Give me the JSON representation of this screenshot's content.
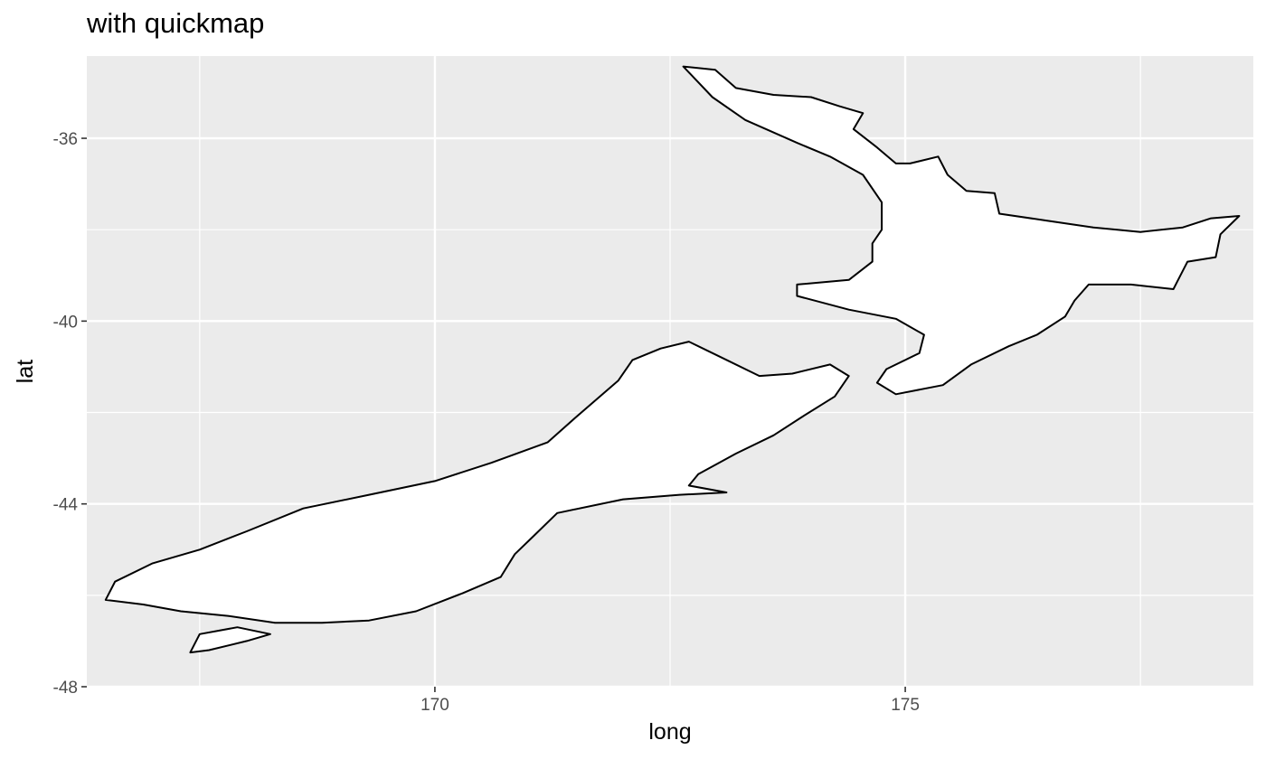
{
  "title": "with quickmap",
  "chart_data": {
    "type": "map",
    "title": "with quickmap",
    "xlabel": "long",
    "ylabel": "lat",
    "xlim": [
      166.3,
      178.7
    ],
    "ylim": [
      -48.0,
      -34.2
    ],
    "x_ticks": [
      170,
      175
    ],
    "x_tick_labels": [
      "170",
      "175"
    ],
    "y_ticks": [
      -36,
      -40,
      -44,
      -48
    ],
    "y_tick_labels": [
      "-36",
      "-40",
      "-44",
      "-48"
    ],
    "x_minor_gridlines": [
      167.5,
      172.5,
      177.5
    ],
    "y_minor_gridlines": [
      -34,
      -38,
      -42,
      -46
    ],
    "grid": true,
    "panel_background": "#ebebeb",
    "grid_color": "#ffffff",
    "fill_color": "#ffffff",
    "outline_color": "#000000",
    "regions": [
      {
        "id": "north-island",
        "coords": [
          [
            172.64,
            -34.43
          ],
          [
            172.98,
            -34.5
          ],
          [
            173.2,
            -34.9
          ],
          [
            173.6,
            -35.05
          ],
          [
            174.0,
            -35.1
          ],
          [
            174.3,
            -35.3
          ],
          [
            174.55,
            -35.45
          ],
          [
            174.45,
            -35.8
          ],
          [
            174.7,
            -36.2
          ],
          [
            174.9,
            -36.55
          ],
          [
            175.05,
            -36.55
          ],
          [
            175.35,
            -36.4
          ],
          [
            175.45,
            -36.8
          ],
          [
            175.65,
            -37.15
          ],
          [
            175.95,
            -37.2
          ],
          [
            176.0,
            -37.65
          ],
          [
            176.5,
            -37.8
          ],
          [
            177.0,
            -37.95
          ],
          [
            177.5,
            -38.05
          ],
          [
            177.95,
            -37.95
          ],
          [
            178.25,
            -37.75
          ],
          [
            178.55,
            -37.7
          ],
          [
            178.35,
            -38.1
          ],
          [
            178.3,
            -38.6
          ],
          [
            178.0,
            -38.7
          ],
          [
            177.9,
            -39.1
          ],
          [
            177.85,
            -39.3
          ],
          [
            177.4,
            -39.2
          ],
          [
            176.95,
            -39.2
          ],
          [
            176.8,
            -39.55
          ],
          [
            176.7,
            -39.9
          ],
          [
            176.4,
            -40.3
          ],
          [
            176.1,
            -40.55
          ],
          [
            175.7,
            -40.95
          ],
          [
            175.4,
            -41.4
          ],
          [
            174.9,
            -41.6
          ],
          [
            174.7,
            -41.35
          ],
          [
            174.8,
            -41.05
          ],
          [
            175.15,
            -40.7
          ],
          [
            175.2,
            -40.3
          ],
          [
            174.9,
            -39.95
          ],
          [
            174.4,
            -39.75
          ],
          [
            173.85,
            -39.45
          ],
          [
            173.85,
            -39.2
          ],
          [
            174.4,
            -39.1
          ],
          [
            174.65,
            -38.7
          ],
          [
            174.65,
            -38.3
          ],
          [
            174.75,
            -38.0
          ],
          [
            174.75,
            -37.4
          ],
          [
            174.55,
            -36.8
          ],
          [
            174.2,
            -36.4
          ],
          [
            173.85,
            -36.1
          ],
          [
            173.3,
            -35.6
          ],
          [
            172.95,
            -35.1
          ],
          [
            172.64,
            -34.43
          ]
        ]
      },
      {
        "id": "south-island",
        "coords": [
          [
            172.7,
            -40.45
          ],
          [
            173.05,
            -40.8
          ],
          [
            173.45,
            -41.2
          ],
          [
            173.8,
            -41.15
          ],
          [
            174.2,
            -40.95
          ],
          [
            174.4,
            -41.2
          ],
          [
            174.25,
            -41.65
          ],
          [
            173.9,
            -42.1
          ],
          [
            173.6,
            -42.5
          ],
          [
            173.2,
            -42.9
          ],
          [
            172.8,
            -43.35
          ],
          [
            172.7,
            -43.6
          ],
          [
            173.1,
            -43.75
          ],
          [
            172.6,
            -43.8
          ],
          [
            172.0,
            -43.9
          ],
          [
            171.3,
            -44.2
          ],
          [
            171.05,
            -44.7
          ],
          [
            170.85,
            -45.1
          ],
          [
            170.7,
            -45.6
          ],
          [
            170.3,
            -45.95
          ],
          [
            169.8,
            -46.35
          ],
          [
            169.3,
            -46.55
          ],
          [
            168.8,
            -46.6
          ],
          [
            168.3,
            -46.6
          ],
          [
            167.8,
            -46.45
          ],
          [
            167.3,
            -46.35
          ],
          [
            166.9,
            -46.2
          ],
          [
            166.5,
            -46.1
          ],
          [
            166.6,
            -45.7
          ],
          [
            167.0,
            -45.3
          ],
          [
            167.5,
            -45.0
          ],
          [
            168.0,
            -44.6
          ],
          [
            168.6,
            -44.1
          ],
          [
            169.3,
            -43.8
          ],
          [
            170.0,
            -43.5
          ],
          [
            170.6,
            -43.1
          ],
          [
            171.2,
            -42.65
          ],
          [
            171.5,
            -42.1
          ],
          [
            171.95,
            -41.3
          ],
          [
            172.1,
            -40.85
          ],
          [
            172.4,
            -40.6
          ],
          [
            172.7,
            -40.45
          ]
        ]
      },
      {
        "id": "stewart-island",
        "coords": [
          [
            167.5,
            -46.85
          ],
          [
            167.9,
            -46.7
          ],
          [
            168.25,
            -46.85
          ],
          [
            168.0,
            -47.0
          ],
          [
            167.6,
            -47.2
          ],
          [
            167.4,
            -47.25
          ],
          [
            167.5,
            -46.85
          ]
        ]
      }
    ]
  }
}
